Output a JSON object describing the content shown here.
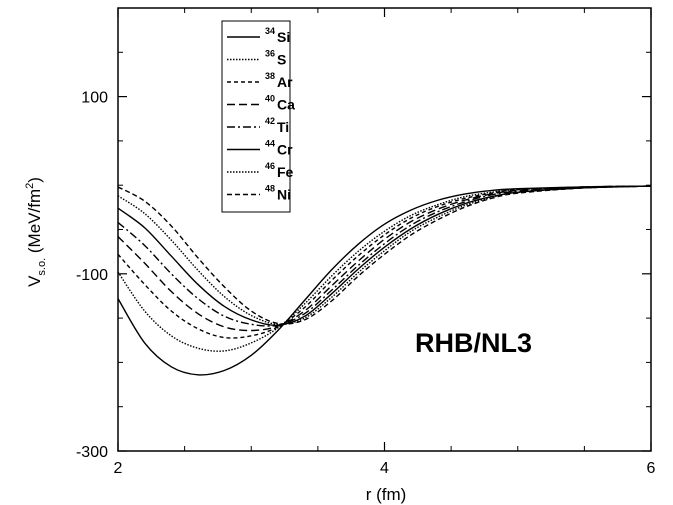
{
  "chart_data": {
    "type": "line",
    "title": "",
    "xlabel": "r  (fm)",
    "ylabel": "V",
    "ylabel_sub": "s.o.",
    "ylabel_unit": "  (MeV/fm",
    "ylabel_unit_sup": "2",
    "ylabel_unit_close": ")",
    "xlim": [
      2,
      6
    ],
    "ylim": [
      -300,
      200
    ],
    "xticks": [
      2,
      4,
      6
    ],
    "yticks": [
      -300,
      -100,
      100
    ],
    "grid": false,
    "legend_position": "top-left",
    "annotation": "RHB/NL3",
    "series": [
      {
        "name": "Si",
        "mass": "34",
        "dash": "",
        "points": [
          [
            2.0,
            -128
          ],
          [
            2.2,
            -178
          ],
          [
            2.4,
            -205
          ],
          [
            2.6,
            -214
          ],
          [
            2.8,
            -209
          ],
          [
            3.0,
            -192
          ],
          [
            3.2,
            -164
          ],
          [
            3.4,
            -130
          ],
          [
            3.6,
            -96
          ],
          [
            3.8,
            -67
          ],
          [
            4.0,
            -44
          ],
          [
            4.2,
            -28
          ],
          [
            4.4,
            -17
          ],
          [
            4.6,
            -10
          ],
          [
            4.8,
            -6
          ],
          [
            5.0,
            -4
          ],
          [
            5.5,
            -2
          ],
          [
            6.0,
            -1
          ]
        ]
      },
      {
        "name": "S",
        "mass": "36",
        "dash": "1.5,1.5",
        "points": [
          [
            2.0,
            -98
          ],
          [
            2.2,
            -142
          ],
          [
            2.4,
            -170
          ],
          [
            2.6,
            -184
          ],
          [
            2.8,
            -187
          ],
          [
            3.0,
            -178
          ],
          [
            3.2,
            -161
          ],
          [
            3.4,
            -134
          ],
          [
            3.6,
            -103
          ],
          [
            3.8,
            -75
          ],
          [
            4.0,
            -52
          ],
          [
            4.2,
            -34
          ],
          [
            4.4,
            -22
          ],
          [
            4.6,
            -13
          ],
          [
            4.8,
            -8
          ],
          [
            5.0,
            -5
          ],
          [
            5.5,
            -2
          ],
          [
            6.0,
            -1
          ]
        ]
      },
      {
        "name": "Ar",
        "mass": "38",
        "dash": "4,3",
        "points": [
          [
            2.0,
            -78
          ],
          [
            2.2,
            -112
          ],
          [
            2.4,
            -142
          ],
          [
            2.6,
            -162
          ],
          [
            2.8,
            -172
          ],
          [
            3.0,
            -170
          ],
          [
            3.2,
            -160
          ],
          [
            3.4,
            -138
          ],
          [
            3.6,
            -108
          ],
          [
            3.8,
            -80
          ],
          [
            4.0,
            -56
          ],
          [
            4.2,
            -37
          ],
          [
            4.4,
            -24
          ],
          [
            4.6,
            -15
          ],
          [
            4.8,
            -9
          ],
          [
            5.0,
            -5
          ],
          [
            5.5,
            -2
          ],
          [
            6.0,
            -1
          ]
        ]
      },
      {
        "name": "Ca",
        "mass": "40",
        "dash": "8,4",
        "points": [
          [
            2.0,
            -58
          ],
          [
            2.2,
            -88
          ],
          [
            2.4,
            -120
          ],
          [
            2.6,
            -145
          ],
          [
            2.8,
            -160
          ],
          [
            3.0,
            -164
          ],
          [
            3.2,
            -159
          ],
          [
            3.4,
            -142
          ],
          [
            3.6,
            -114
          ],
          [
            3.8,
            -86
          ],
          [
            4.0,
            -61
          ],
          [
            4.2,
            -41
          ],
          [
            4.4,
            -27
          ],
          [
            4.6,
            -17
          ],
          [
            4.8,
            -10
          ],
          [
            5.0,
            -6
          ],
          [
            5.5,
            -2
          ],
          [
            6.0,
            -1
          ]
        ]
      },
      {
        "name": "Ti",
        "mass": "42",
        "dash": "8,3,2,3",
        "points": [
          [
            2.0,
            -42
          ],
          [
            2.2,
            -68
          ],
          [
            2.4,
            -100
          ],
          [
            2.6,
            -128
          ],
          [
            2.8,
            -148
          ],
          [
            3.0,
            -157
          ],
          [
            3.2,
            -158
          ],
          [
            3.4,
            -145
          ],
          [
            3.6,
            -119
          ],
          [
            3.8,
            -91
          ],
          [
            4.0,
            -66
          ],
          [
            4.2,
            -45
          ],
          [
            4.4,
            -30
          ],
          [
            4.6,
            -19
          ],
          [
            4.8,
            -11
          ],
          [
            5.0,
            -7
          ],
          [
            5.5,
            -3
          ],
          [
            6.0,
            -1
          ]
        ]
      },
      {
        "name": "Cr",
        "mass": "44",
        "dash": "",
        "points": [
          [
            2.0,
            -26
          ],
          [
            2.2,
            -48
          ],
          [
            2.4,
            -80
          ],
          [
            2.6,
            -112
          ],
          [
            2.8,
            -137
          ],
          [
            3.0,
            -152
          ],
          [
            3.2,
            -158
          ],
          [
            3.4,
            -148
          ],
          [
            3.6,
            -123
          ],
          [
            3.8,
            -95
          ],
          [
            4.0,
            -70
          ],
          [
            4.2,
            -49
          ],
          [
            4.4,
            -33
          ],
          [
            4.6,
            -21
          ],
          [
            4.8,
            -13
          ],
          [
            5.0,
            -8
          ],
          [
            5.5,
            -3
          ],
          [
            6.0,
            -1
          ]
        ]
      },
      {
        "name": "Fe",
        "mass": "46",
        "dash": "1.5,1.5",
        "points": [
          [
            2.0,
            -12
          ],
          [
            2.2,
            -32
          ],
          [
            2.4,
            -62
          ],
          [
            2.6,
            -96
          ],
          [
            2.8,
            -126
          ],
          [
            3.0,
            -147
          ],
          [
            3.2,
            -157
          ],
          [
            3.4,
            -150
          ],
          [
            3.6,
            -127
          ],
          [
            3.8,
            -99
          ],
          [
            4.0,
            -74
          ],
          [
            4.2,
            -52
          ],
          [
            4.4,
            -36
          ],
          [
            4.6,
            -23
          ],
          [
            4.8,
            -14
          ],
          [
            5.0,
            -8
          ],
          [
            5.5,
            -3
          ],
          [
            6.0,
            -1
          ]
        ]
      },
      {
        "name": "Ni",
        "mass": "48",
        "dash": "5,3",
        "points": [
          [
            2.0,
            -2
          ],
          [
            2.2,
            -18
          ],
          [
            2.4,
            -46
          ],
          [
            2.6,
            -82
          ],
          [
            2.8,
            -115
          ],
          [
            3.0,
            -142
          ],
          [
            3.2,
            -156
          ],
          [
            3.4,
            -152
          ],
          [
            3.6,
            -131
          ],
          [
            3.8,
            -103
          ],
          [
            4.0,
            -78
          ],
          [
            4.2,
            -56
          ],
          [
            4.4,
            -39
          ],
          [
            4.6,
            -25
          ],
          [
            4.8,
            -15
          ],
          [
            5.0,
            -9
          ],
          [
            5.5,
            -3
          ],
          [
            6.0,
            -1
          ]
        ]
      }
    ]
  }
}
